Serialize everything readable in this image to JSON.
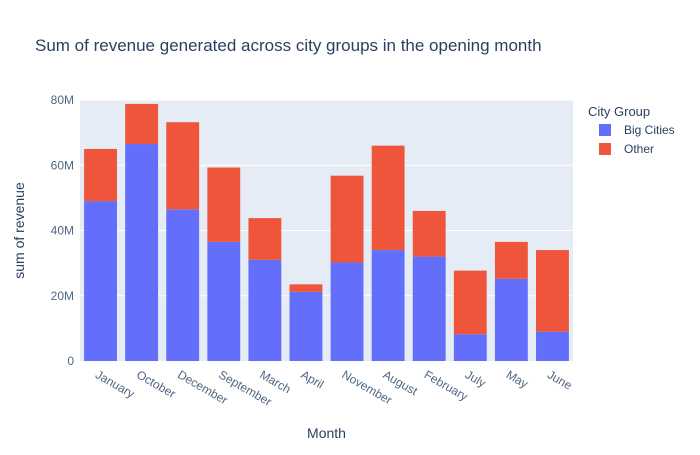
{
  "chart_data": {
    "type": "bar",
    "barmode": "stack",
    "title": "Sum of revenue generated across city groups in the opening month",
    "xlabel": "Month",
    "ylabel": "sum of revenue",
    "categories": [
      "January",
      "October",
      "December",
      "September",
      "March",
      "April",
      "November",
      "August",
      "February",
      "July",
      "May",
      "June"
    ],
    "series": [
      {
        "name": "Big Cities",
        "color": "#636efa",
        "values": [
          49,
          66.5,
          46.5,
          36.5,
          31,
          21.2,
          30.2,
          34,
          32,
          8.2,
          25.2,
          9
        ]
      },
      {
        "name": "Other",
        "color": "#ef553b",
        "values": [
          16,
          12.3,
          26.7,
          22.8,
          12.8,
          2.3,
          26.6,
          32,
          14,
          19.5,
          11.3,
          25
        ]
      }
    ],
    "ylim": [
      0,
      80
    ],
    "yticks": [
      0,
      20,
      40,
      60,
      80
    ],
    "ytick_labels": [
      "0",
      "20M",
      "40M",
      "60M",
      "80M"
    ],
    "grid": true,
    "legend": {
      "title": "City Group",
      "position": "top-right"
    },
    "colors": {
      "plot_bg": "#e5ecf6",
      "grid": "#ffffff",
      "text": "#2a3f5f",
      "axis_text": "#506784"
    }
  }
}
